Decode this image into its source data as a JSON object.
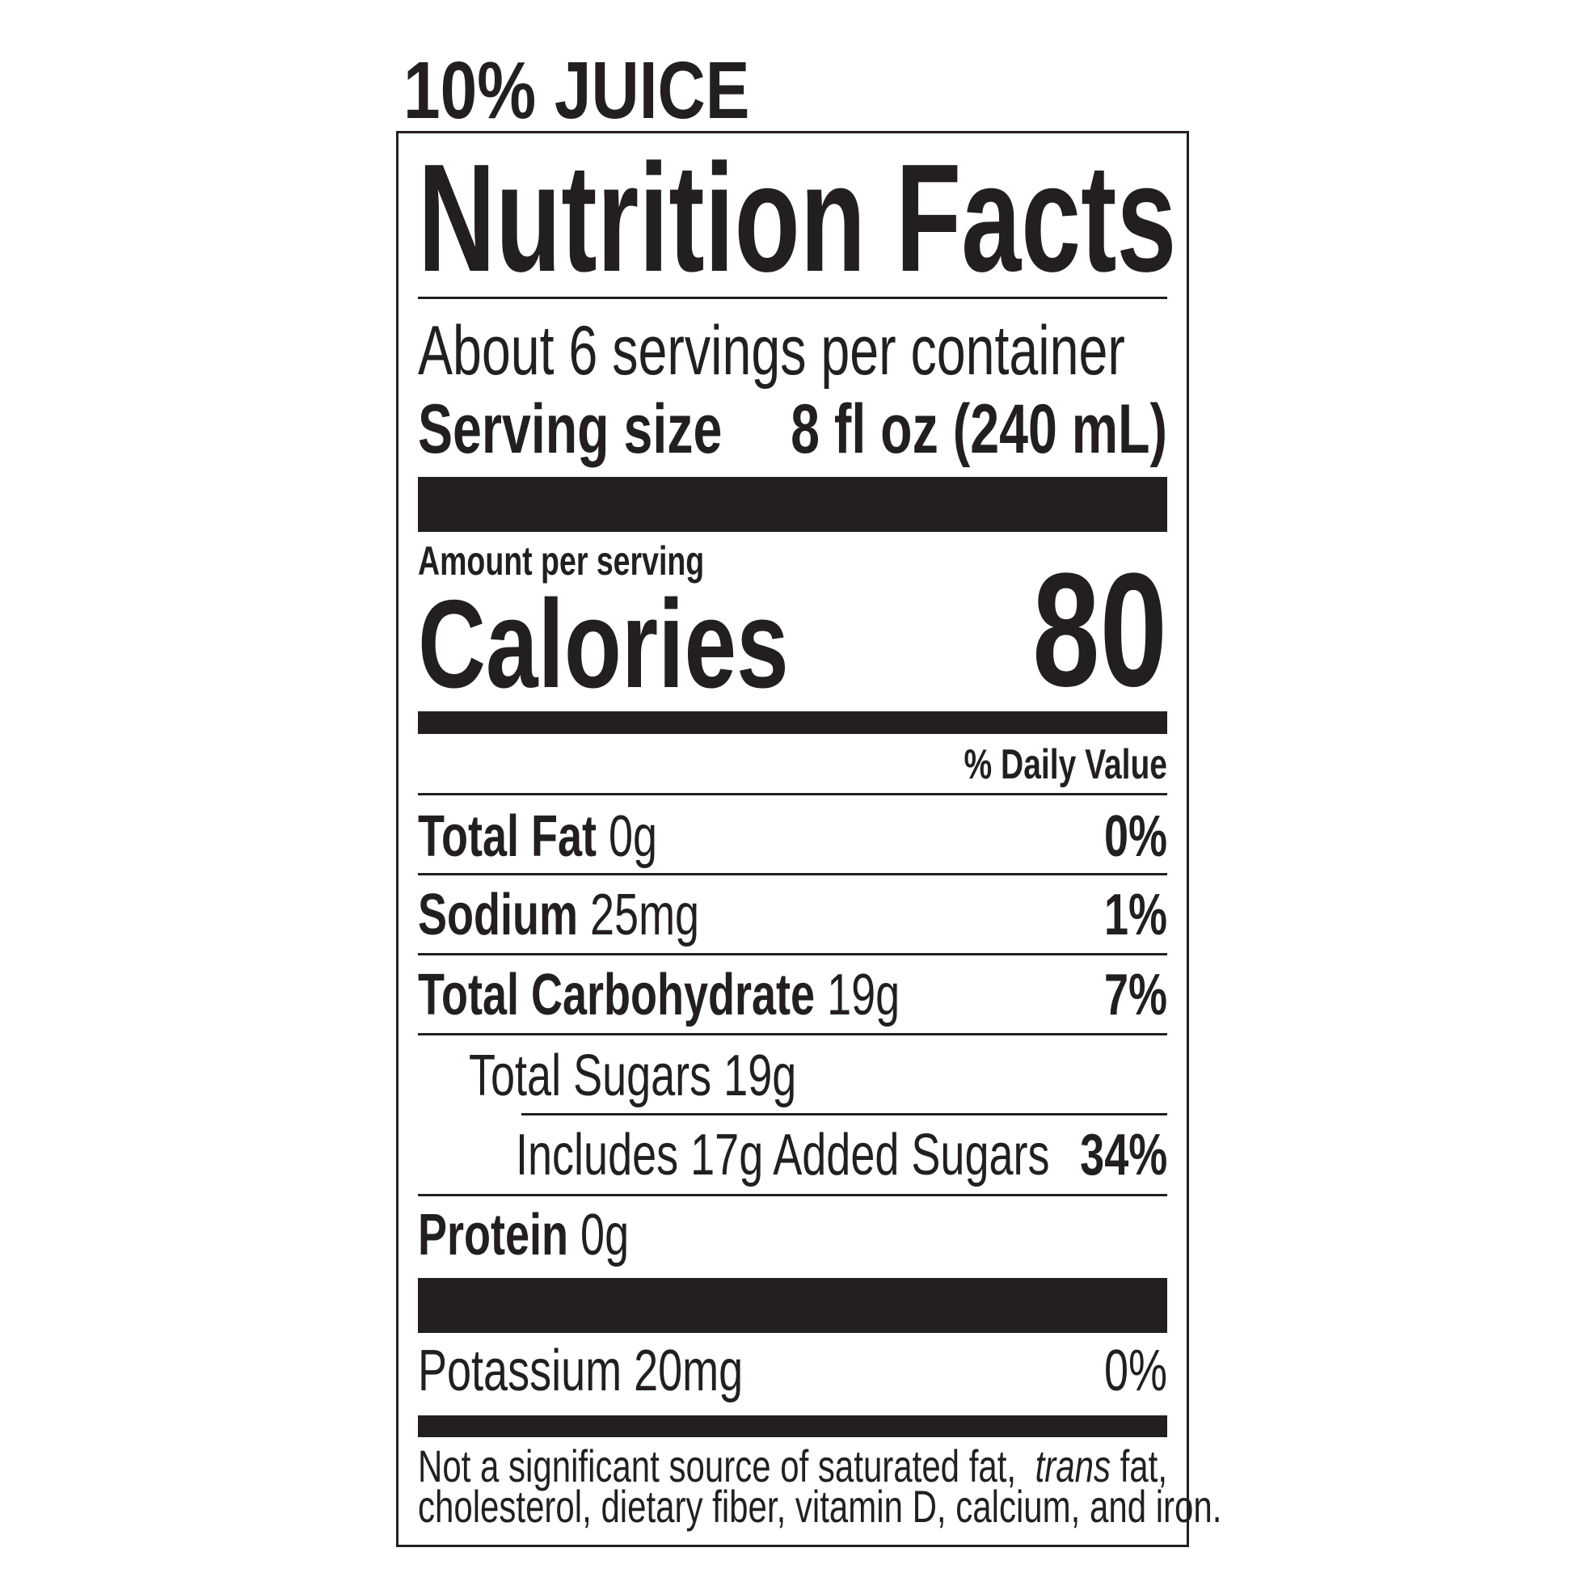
{
  "juice_label": "10% JUICE",
  "title": "Nutrition Facts",
  "servings_per_container": "About 6 servings per container",
  "serving_size_label": "Serving size",
  "serving_size_value": "8 fl oz (240 mL)",
  "amount_per_serving": "Amount per serving",
  "calories_label": "Calories",
  "calories_value": "80",
  "daily_value_header": "% Daily Value",
  "nutrients": [
    {
      "name": "Total Fat",
      "amount": "0g",
      "dv": "0%"
    },
    {
      "name": "Sodium",
      "amount": "25mg",
      "dv": "1%"
    },
    {
      "name": "Total Carbohydrate",
      "amount": "19g",
      "dv": "7%"
    },
    {
      "name": "Total Sugars 19g"
    },
    {
      "name": "Includes 17g Added Sugars",
      "dv": "34%"
    },
    {
      "name": "Protein",
      "amount": "0g"
    },
    {
      "name": "Potassium 20mg",
      "dv": "0%"
    }
  ],
  "footnote": {
    "part1": "Not a significant source of saturated fat,",
    "italic": "trans",
    "part2": "fat,",
    "line2": "cholesterol, dietary fiber, vitamin D, calcium, and iron."
  }
}
